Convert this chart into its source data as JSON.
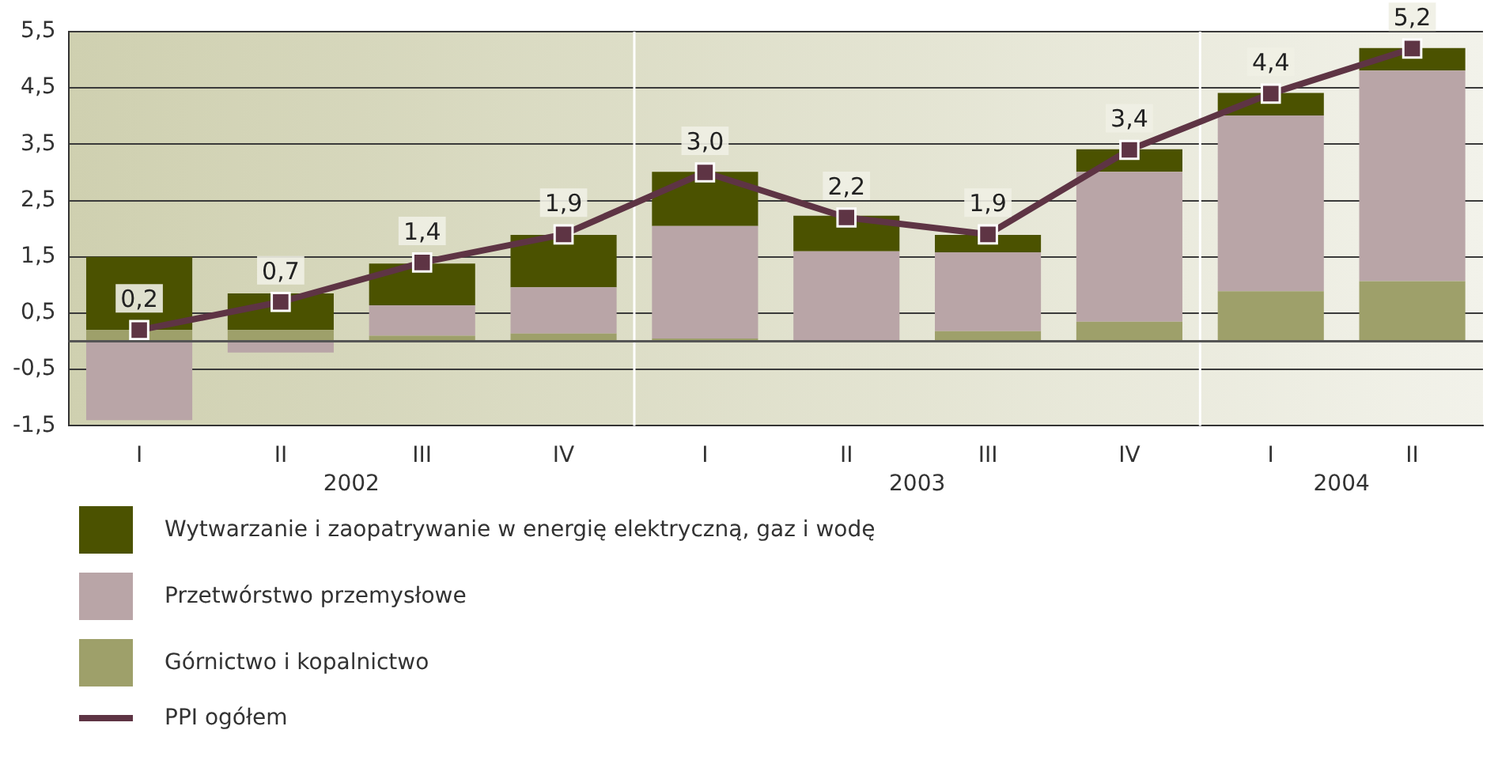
{
  "chart_data": {
    "type": "bar",
    "stacked": true,
    "categories": [
      "I",
      "II",
      "III",
      "IV",
      "I",
      "II",
      "III",
      "IV",
      "I",
      "II"
    ],
    "annotations": [
      "2002",
      "2003",
      "2004"
    ],
    "series": [
      {
        "name": "Górnictwo i kopalnictwo",
        "color": "#9ea06a",
        "values": [
          0.2,
          0.2,
          0.1,
          0.14,
          0.05,
          null,
          0.18,
          0.35,
          0.89,
          1.07
        ]
      },
      {
        "name": "Przetwórstwo przemysłowe",
        "color": "#b9a5a7",
        "values": [
          -1.4,
          -0.2,
          0.54,
          0.82,
          2.0,
          1.6,
          1.4,
          2.66,
          3.12,
          3.74
        ]
      },
      {
        "name": "Wytwarzanie i zaopatrywanie w energię elektryczną, gaz i wodę",
        "color": "#4b5200",
        "values": [
          1.3,
          0.65,
          0.74,
          0.93,
          0.96,
          0.63,
          0.31,
          0.4,
          0.4,
          0.4
        ]
      },
      {
        "name": "PPI ogółem",
        "type": "line",
        "color": "#5e3444",
        "values": [
          0.2,
          0.7,
          1.4,
          1.9,
          3.0,
          2.2,
          1.9,
          3.4,
          4.4,
          5.2
        ],
        "value_labels": [
          "0,2",
          "0,7",
          "1,4",
          "1,9",
          "3,0",
          "2,2",
          "1,9",
          "3,4",
          "4,4",
          "5,2"
        ]
      }
    ],
    "ylim": [
      -1.5,
      5.5
    ],
    "yticks": [
      {
        "value": -1.5,
        "label": "-1,5"
      },
      {
        "value": -0.5,
        "label": "-0,5"
      },
      {
        "value": 0.5,
        "label": "0,5"
      },
      {
        "value": 1.5,
        "label": "1,5"
      },
      {
        "value": 2.5,
        "label": "2,5"
      },
      {
        "value": 3.5,
        "label": "3,5"
      },
      {
        "value": 4.5,
        "label": "4,5"
      },
      {
        "value": 5.5,
        "label": "5,5"
      }
    ],
    "grid": "y",
    "legend": "bottom left",
    "marker": "square"
  }
}
